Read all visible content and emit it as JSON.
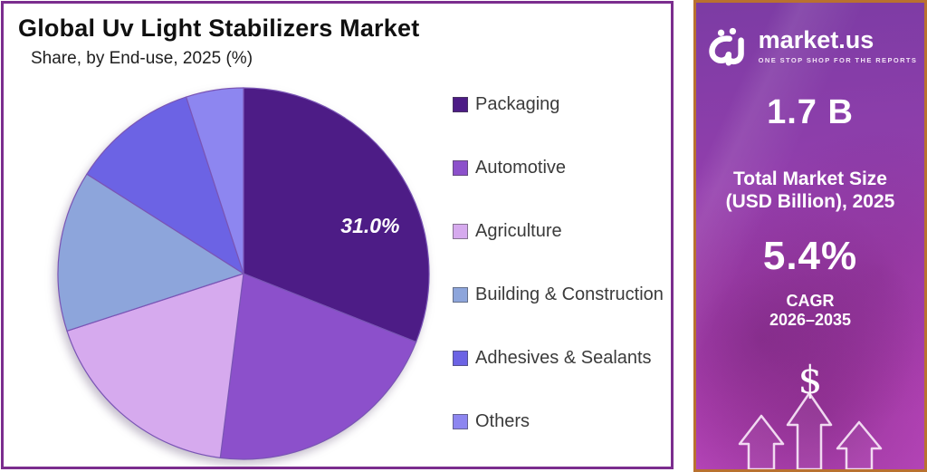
{
  "header": {
    "title": "Global Uv Light Stabilizers Market",
    "subtitle": "Share, by End-use, 2025 (%)"
  },
  "chart_data": {
    "type": "pie",
    "title": "Global Uv Light Stabilizers Market",
    "subtitle": "Share, by End-use, 2025 (%)",
    "unit": "%",
    "categories": [
      "Packaging",
      "Automotive",
      "Agriculture",
      "Building & Construction",
      "Adhesives & Sealants",
      "Others"
    ],
    "values": [
      31.0,
      21.0,
      18.0,
      14.0,
      11.0,
      5.0
    ],
    "colors": [
      "#4D1C86",
      "#8C50CB",
      "#D6AAEE",
      "#8DA5DB",
      "#6C63E4",
      "#8D86F0"
    ],
    "data_labels": [
      "31.0%",
      "",
      "",
      "",
      "",
      ""
    ],
    "start_angle_deg": 0,
    "direction": "clockwise",
    "legend_position": "right",
    "slice_stroke": "#7A55B5"
  },
  "sidebar": {
    "brand": {
      "name": "market.us",
      "tagline": "ONE STOP SHOP FOR THE REPORTS"
    },
    "market_size_value": "1.7 B",
    "market_size_label_line1": "Total Market Size",
    "market_size_label_line2": "(USD Billion), 2025",
    "cagr_value": "5.4%",
    "cagr_label_line1": "CAGR",
    "cagr_label_line2": "2026–2035",
    "dollar_symbol": "$",
    "colors": {
      "border": "#B9712F",
      "bg_top": "#7C3CA4",
      "bg_bottom": "#BC49BF"
    }
  },
  "page": {
    "panel_border_color": "#7B2D8E"
  }
}
